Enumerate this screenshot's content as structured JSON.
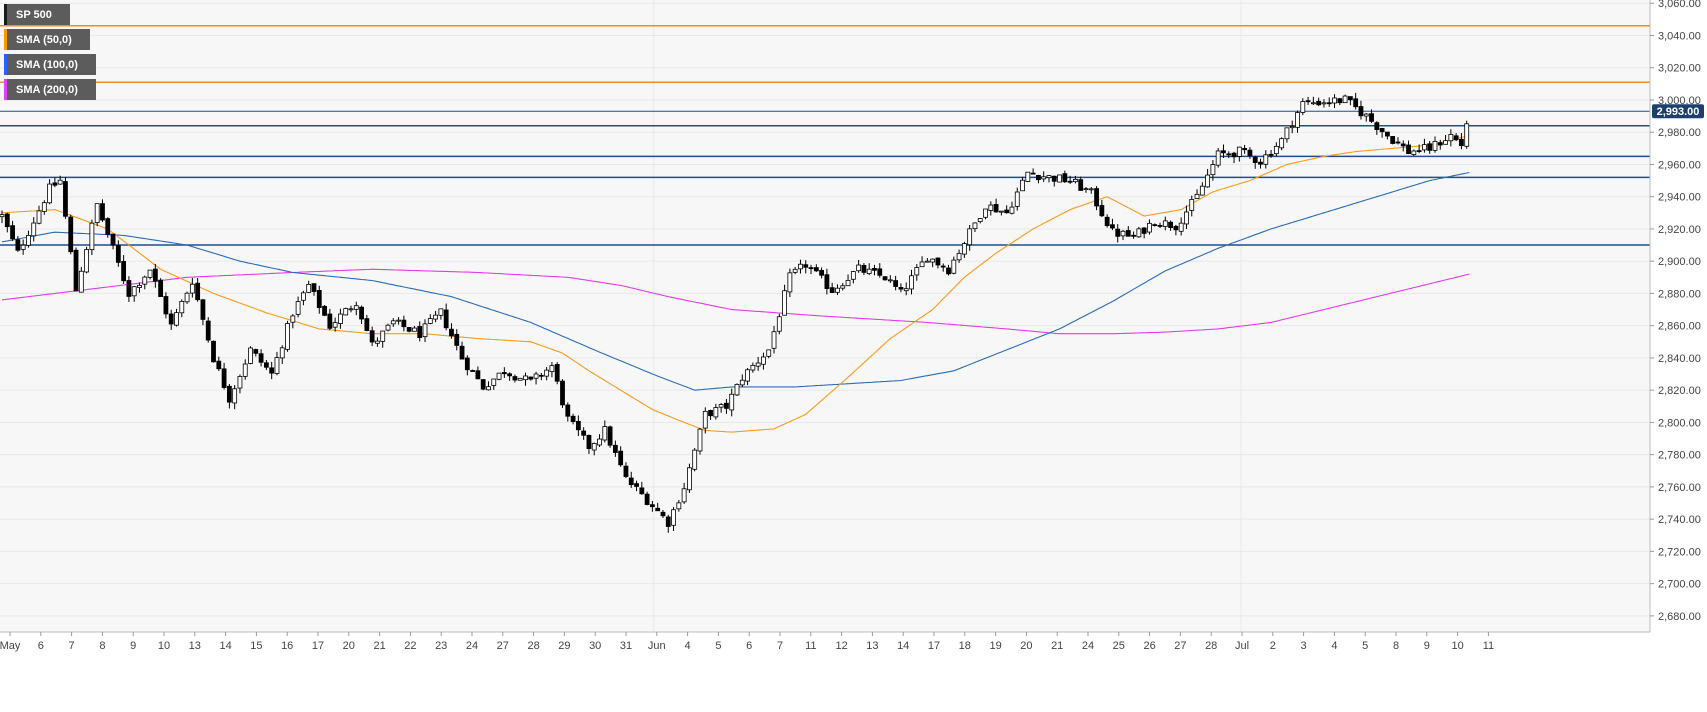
{
  "legend": [
    {
      "label": "SP 500",
      "color": "#1a1a1a"
    },
    {
      "label": "SMA (50,0)",
      "color": "#ff9800"
    },
    {
      "label": "SMA (100,0)",
      "color": "#2962ff"
    },
    {
      "label": "SMA (200,0)",
      "color": "#e040fb"
    }
  ],
  "colors": {
    "background": "#f7f7f7",
    "grid": "#e8e8e8",
    "candle_up": "#ffffff",
    "candle_down": "#000000",
    "sma50": "#f59b1f",
    "sma100": "#2b6cb5",
    "sma200": "#e23be8",
    "resistance": "#f08c1a",
    "support": "#1f4e8f",
    "price_badge": "#1d3f6e"
  },
  "chart_data": {
    "type": "candlestick",
    "title": "SP 500",
    "ylim": [
      2670,
      3062
    ],
    "y_ticks": [
      "2,680.00",
      "2,700.00",
      "2,720.00",
      "2,740.00",
      "2,760.00",
      "2,780.00",
      "2,800.00",
      "2,820.00",
      "2,840.00",
      "2,860.00",
      "2,880.00",
      "2,900.00",
      "2,920.00",
      "2,940.00",
      "2,960.00",
      "2,980.00",
      "3,000.00",
      "3,020.00",
      "3,040.00",
      "3,060.00"
    ],
    "x_ticks": [
      "May",
      "6",
      "7",
      "8",
      "9",
      "10",
      "13",
      "14",
      "15",
      "16",
      "17",
      "20",
      "21",
      "22",
      "23",
      "24",
      "27",
      "28",
      "29",
      "30",
      "31",
      "Jun",
      "4",
      "5",
      "6",
      "7",
      "11",
      "12",
      "13",
      "14",
      "17",
      "18",
      "19",
      "20",
      "21",
      "24",
      "25",
      "26",
      "27",
      "28",
      "Jul",
      "2",
      "3",
      "4",
      "5",
      "8",
      "9",
      "10",
      "11"
    ],
    "last_price": 2993,
    "last_price_label": "2,993.00",
    "horizontal_levels": [
      {
        "value": 3046,
        "kind": "resistance"
      },
      {
        "value": 3011,
        "kind": "resistance"
      },
      {
        "value": 2993,
        "kind": "current"
      },
      {
        "value": 2984,
        "kind": "support"
      },
      {
        "value": 2965,
        "kind": "support"
      },
      {
        "value": 2952,
        "kind": "support"
      },
      {
        "value": 2910,
        "kind": "support"
      }
    ],
    "price_keypoints": [
      [
        0,
        2928
      ],
      [
        6,
        2905
      ],
      [
        18,
        2945
      ],
      [
        22,
        2950
      ],
      [
        28,
        2882
      ],
      [
        36,
        2935
      ],
      [
        48,
        2880
      ],
      [
        56,
        2895
      ],
      [
        64,
        2860
      ],
      [
        72,
        2888
      ],
      [
        80,
        2840
      ],
      [
        86,
        2815
      ],
      [
        94,
        2845
      ],
      [
        102,
        2830
      ],
      [
        110,
        2868
      ],
      [
        116,
        2885
      ],
      [
        124,
        2860
      ],
      [
        134,
        2875
      ],
      [
        140,
        2848
      ],
      [
        148,
        2862
      ],
      [
        158,
        2855
      ],
      [
        166,
        2868
      ],
      [
        174,
        2840
      ],
      [
        182,
        2822
      ],
      [
        190,
        2832
      ],
      [
        200,
        2825
      ],
      [
        208,
        2835
      ],
      [
        214,
        2802
      ],
      [
        222,
        2785
      ],
      [
        228,
        2795
      ],
      [
        236,
        2765
      ],
      [
        244,
        2752
      ],
      [
        252,
        2738
      ],
      [
        258,
        2760
      ],
      [
        266,
        2805
      ],
      [
        274,
        2810
      ],
      [
        280,
        2828
      ],
      [
        290,
        2845
      ],
      [
        298,
        2890
      ],
      [
        304,
        2898
      ],
      [
        314,
        2882
      ],
      [
        324,
        2895
      ],
      [
        334,
        2890
      ],
      [
        340,
        2880
      ],
      [
        350,
        2903
      ],
      [
        358,
        2895
      ],
      [
        364,
        2912
      ],
      [
        372,
        2935
      ],
      [
        380,
        2930
      ],
      [
        388,
        2955
      ],
      [
        396,
        2952
      ],
      [
        404,
        2950
      ],
      [
        412,
        2942
      ],
      [
        420,
        2918
      ],
      [
        428,
        2915
      ],
      [
        436,
        2925
      ],
      [
        444,
        2922
      ],
      [
        452,
        2940
      ],
      [
        460,
        2966
      ],
      [
        468,
        2968
      ],
      [
        476,
        2962
      ],
      [
        484,
        2975
      ],
      [
        492,
        2998
      ],
      [
        500,
        2999
      ],
      [
        508,
        3000
      ],
      [
        516,
        2990
      ],
      [
        524,
        2978
      ],
      [
        532,
        2968
      ],
      [
        540,
        2970
      ],
      [
        548,
        2978
      ],
      [
        552,
        2972
      ],
      [
        555,
        2993
      ]
    ],
    "sma50_keypoints": [
      [
        0,
        2930
      ],
      [
        20,
        2932
      ],
      [
        40,
        2920
      ],
      [
        60,
        2895
      ],
      [
        80,
        2880
      ],
      [
        100,
        2868
      ],
      [
        120,
        2858
      ],
      [
        140,
        2855
      ],
      [
        160,
        2855
      ],
      [
        180,
        2852
      ],
      [
        200,
        2850
      ],
      [
        212,
        2843
      ],
      [
        222,
        2832
      ],
      [
        236,
        2818
      ],
      [
        246,
        2808
      ],
      [
        258,
        2800
      ],
      [
        266,
        2795
      ],
      [
        276,
        2794
      ],
      [
        292,
        2796
      ],
      [
        304,
        2805
      ],
      [
        320,
        2828
      ],
      [
        336,
        2852
      ],
      [
        352,
        2870
      ],
      [
        364,
        2890
      ],
      [
        376,
        2905
      ],
      [
        390,
        2920
      ],
      [
        404,
        2932
      ],
      [
        418,
        2940
      ],
      [
        432,
        2928
      ],
      [
        446,
        2932
      ],
      [
        458,
        2943
      ],
      [
        472,
        2950
      ],
      [
        486,
        2960
      ],
      [
        500,
        2965
      ],
      [
        512,
        2968
      ],
      [
        526,
        2970
      ],
      [
        540,
        2972
      ],
      [
        555,
        2978
      ]
    ],
    "sma100_keypoints": [
      [
        0,
        2912
      ],
      [
        20,
        2918
      ],
      [
        46,
        2916
      ],
      [
        70,
        2910
      ],
      [
        90,
        2900
      ],
      [
        110,
        2893
      ],
      [
        140,
        2888
      ],
      [
        170,
        2878
      ],
      [
        200,
        2862
      ],
      [
        224,
        2845
      ],
      [
        246,
        2830
      ],
      [
        262,
        2820
      ],
      [
        276,
        2822
      ],
      [
        300,
        2822
      ],
      [
        320,
        2824
      ],
      [
        340,
        2826
      ],
      [
        360,
        2832
      ],
      [
        380,
        2845
      ],
      [
        400,
        2858
      ],
      [
        420,
        2875
      ],
      [
        440,
        2894
      ],
      [
        460,
        2908
      ],
      [
        480,
        2920
      ],
      [
        500,
        2930
      ],
      [
        520,
        2940
      ],
      [
        540,
        2950
      ],
      [
        555,
        2955
      ]
    ],
    "sma200_keypoints": [
      [
        0,
        2876
      ],
      [
        30,
        2882
      ],
      [
        70,
        2890
      ],
      [
        110,
        2893
      ],
      [
        140,
        2895
      ],
      [
        180,
        2893
      ],
      [
        214,
        2890
      ],
      [
        234,
        2885
      ],
      [
        252,
        2878
      ],
      [
        276,
        2870
      ],
      [
        310,
        2866
      ],
      [
        350,
        2862
      ],
      [
        380,
        2858
      ],
      [
        400,
        2855
      ],
      [
        420,
        2855
      ],
      [
        440,
        2856
      ],
      [
        460,
        2858
      ],
      [
        480,
        2862
      ],
      [
        500,
        2870
      ],
      [
        520,
        2878
      ],
      [
        540,
        2886
      ],
      [
        555,
        2892
      ]
    ]
  }
}
